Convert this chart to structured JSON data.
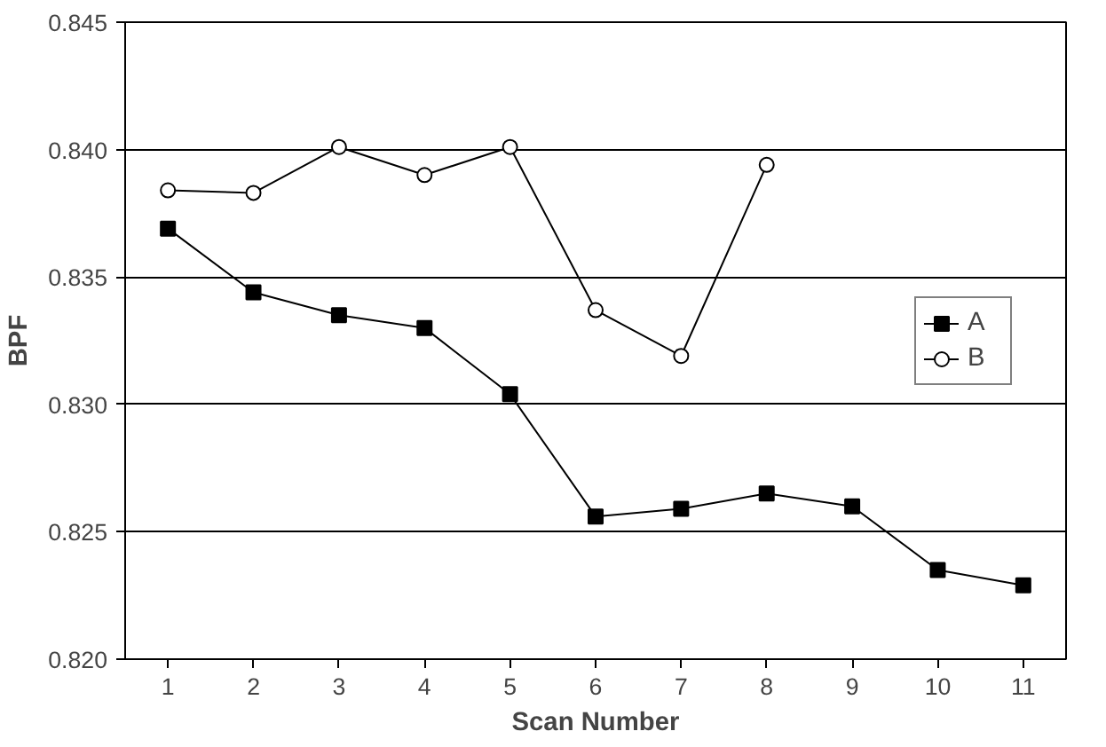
{
  "chart_data": {
    "type": "line",
    "xlabel": "Scan Number",
    "ylabel": "BPF",
    "x": [
      1,
      2,
      3,
      4,
      5,
      6,
      7,
      8,
      9,
      10,
      11
    ],
    "xlim": [
      0.5,
      11.5
    ],
    "xticks": [
      1,
      2,
      3,
      4,
      5,
      6,
      7,
      8,
      9,
      10,
      11
    ],
    "ylim": [
      0.82,
      0.845
    ],
    "yticks": [
      {
        "value": 0.82,
        "label": "0.820"
      },
      {
        "value": 0.825,
        "label": "0.825"
      },
      {
        "value": 0.83,
        "label": "0.830"
      },
      {
        "value": 0.835,
        "label": "0.835"
      },
      {
        "value": 0.84,
        "label": "0.840"
      },
      {
        "value": 0.845,
        "label": "0.845"
      }
    ],
    "grid": "y",
    "legend": "right",
    "series": [
      {
        "name": "A",
        "color": "#000000",
        "marker": "square",
        "values": [
          0.8369,
          0.8344,
          0.8335,
          0.833,
          0.8304,
          0.8256,
          0.8259,
          0.8265,
          0.826,
          0.8235,
          0.8229
        ]
      },
      {
        "name": "B",
        "color": "#000000",
        "marker": "circle",
        "values": [
          0.8384,
          0.8383,
          0.8401,
          0.839,
          0.8401,
          0.8337,
          0.8319,
          0.8394,
          null,
          null,
          null
        ]
      }
    ]
  }
}
